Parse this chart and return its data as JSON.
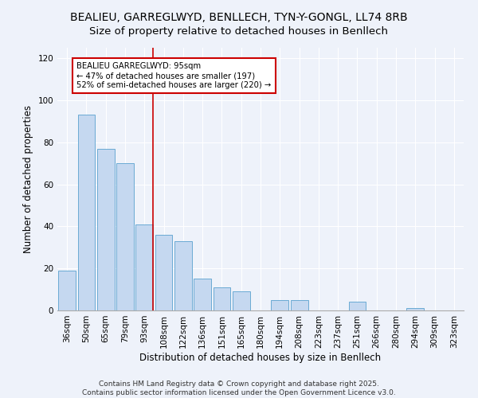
{
  "title": "BEALIEU, GARREGLWYD, BENLLECH, TYN-Y-GONGL, LL74 8RB",
  "subtitle": "Size of property relative to detached houses in Benllech",
  "xlabel": "Distribution of detached houses by size in Benllech",
  "ylabel": "Number of detached properties",
  "categories": [
    "36sqm",
    "50sqm",
    "65sqm",
    "79sqm",
    "93sqm",
    "108sqm",
    "122sqm",
    "136sqm",
    "151sqm",
    "165sqm",
    "180sqm",
    "194sqm",
    "208sqm",
    "223sqm",
    "237sqm",
    "251sqm",
    "266sqm",
    "280sqm",
    "294sqm",
    "309sqm",
    "323sqm"
  ],
  "values": [
    19,
    93,
    77,
    70,
    41,
    36,
    33,
    15,
    11,
    9,
    0,
    5,
    5,
    0,
    0,
    4,
    0,
    0,
    1,
    0,
    0
  ],
  "bar_color": "#c5d8f0",
  "bar_edge_color": "#6aaad4",
  "vline_x_index": 4,
  "vline_color": "#cc0000",
  "annotation_text": "BEALIEU GARREGLWYD: 95sqm\n← 47% of detached houses are smaller (197)\n52% of semi-detached houses are larger (220) →",
  "annotation_box_color": "#ffffff",
  "annotation_box_edge_color": "#cc0000",
  "ylim": [
    0,
    125
  ],
  "yticks": [
    0,
    20,
    40,
    60,
    80,
    100,
    120
  ],
  "footer": "Contains HM Land Registry data © Crown copyright and database right 2025.\nContains public sector information licensed under the Open Government Licence v3.0.",
  "background_color": "#eef2fa",
  "grid_color": "#ffffff",
  "title_fontsize": 10,
  "label_fontsize": 8.5,
  "tick_fontsize": 7.5,
  "footer_fontsize": 6.5
}
